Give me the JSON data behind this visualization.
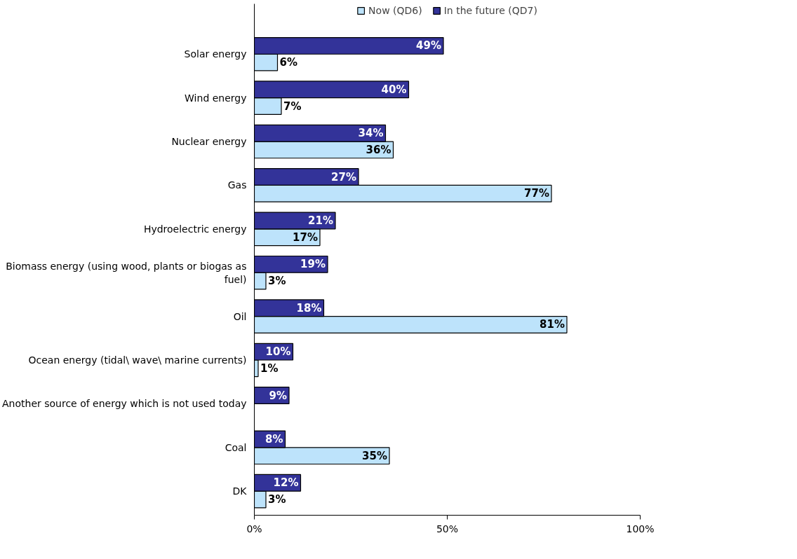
{
  "chart_data": {
    "type": "bar",
    "orientation": "horizontal",
    "categories": [
      "Solar energy",
      "Wind energy",
      "Nuclear energy",
      "Gas",
      "Hydroelectric energy",
      "Biomass energy (using wood, plants or biogas as fuel)",
      "Oil",
      "Ocean energy (tidal\\ wave\\ marine currents)",
      "Another source of energy which is not used today",
      "Coal",
      "DK"
    ],
    "series": [
      {
        "name": "Now (QD6)",
        "color": "#bde3fb",
        "values": [
          6,
          7,
          36,
          77,
          17,
          3,
          81,
          1,
          null,
          35,
          3
        ],
        "value_labels": [
          "6%",
          "7%",
          "36%",
          "77%",
          "17%",
          "3%",
          "81%",
          "1%",
          null,
          "35%",
          "3%"
        ]
      },
      {
        "name": "In the future (QD7)",
        "color": "#333399",
        "values": [
          49,
          40,
          34,
          27,
          21,
          19,
          18,
          10,
          9,
          8,
          12
        ],
        "value_labels": [
          "49%",
          "40%",
          "34%",
          "27%",
          "21%",
          "19%",
          "18%",
          "10%",
          "9%",
          "8%",
          "12%"
        ]
      }
    ],
    "xlim": [
      0,
      100
    ],
    "xticks": [
      {
        "value": 0,
        "label": "0%"
      },
      {
        "value": 50,
        "label": "50%"
      },
      {
        "value": 100,
        "label": "100%"
      }
    ],
    "grid": false,
    "legend": "top"
  }
}
